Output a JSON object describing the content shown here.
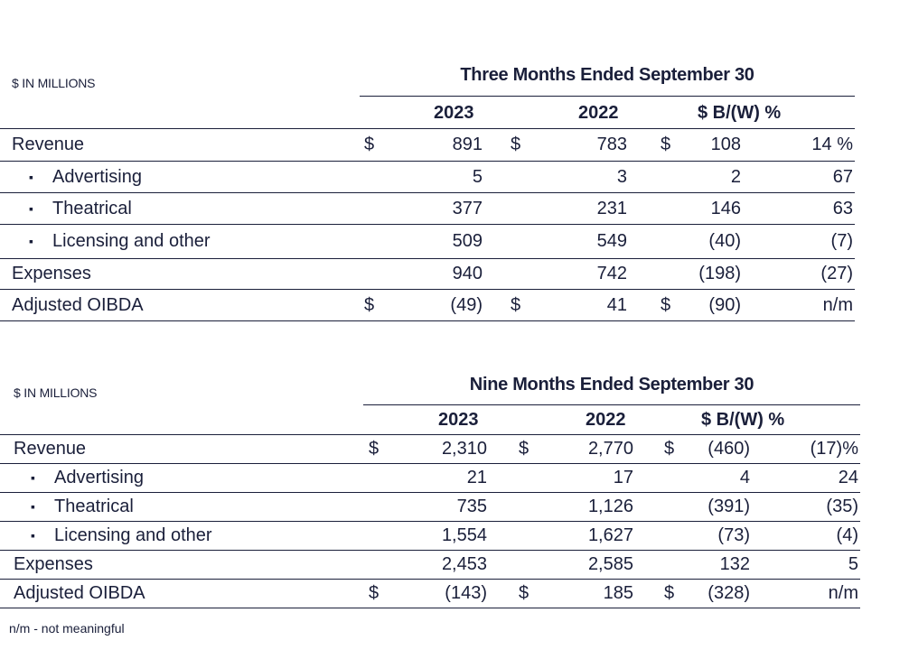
{
  "tables": [
    {
      "units": "$ IN MILLIONS",
      "period": "Three Months Ended September 30",
      "columns": [
        "2023",
        "2022",
        "$ B/(W) %"
      ],
      "rows": [
        {
          "label": "Revenue",
          "sub": false,
          "d1": "$",
          "v2023": "891",
          "d2": "$",
          "v2022": "783",
          "d3": "$",
          "bw": "108",
          "pct": "14 %"
        },
        {
          "label": "Advertising",
          "sub": true,
          "d1": "",
          "v2023": "5",
          "d2": "",
          "v2022": "3",
          "d3": "",
          "bw": "2",
          "pct": "67"
        },
        {
          "label": "Theatrical",
          "sub": true,
          "d1": "",
          "v2023": "377",
          "d2": "",
          "v2022": "231",
          "d3": "",
          "bw": "146",
          "pct": "63"
        },
        {
          "label": "Licensing and other",
          "sub": true,
          "d1": "",
          "v2023": "509",
          "d2": "",
          "v2022": "549",
          "d3": "",
          "bw": "(40)",
          "pct": "(7)"
        },
        {
          "label": "Expenses",
          "sub": false,
          "d1": "",
          "v2023": "940",
          "d2": "",
          "v2022": "742",
          "d3": "",
          "bw": "(198)",
          "pct": "(27)"
        },
        {
          "label": "Adjusted OIBDA",
          "sub": false,
          "d1": "$",
          "v2023": "(49)",
          "d2": "$",
          "v2022": "41",
          "d3": "$",
          "bw": "(90)",
          "pct": "n/m"
        }
      ]
    },
    {
      "units": "$ IN MILLIONS",
      "period": "Nine Months Ended September 30",
      "columns": [
        "2023",
        "2022",
        "$ B/(W) %"
      ],
      "rows": [
        {
          "label": "Revenue",
          "sub": false,
          "d1": "$",
          "v2023": "2,310",
          "d2": "$",
          "v2022": "2,770",
          "d3": "$",
          "bw": "(460)",
          "pct": "(17)%"
        },
        {
          "label": "Advertising",
          "sub": true,
          "d1": "",
          "v2023": "21",
          "d2": "",
          "v2022": "17",
          "d3": "",
          "bw": "4",
          "pct": "24"
        },
        {
          "label": "Theatrical",
          "sub": true,
          "d1": "",
          "v2023": "735",
          "d2": "",
          "v2022": "1,126",
          "d3": "",
          "bw": "(391)",
          "pct": "(35)"
        },
        {
          "label": "Licensing and other",
          "sub": true,
          "d1": "",
          "v2023": "1,554",
          "d2": "",
          "v2022": "1,627",
          "d3": "",
          "bw": "(73)",
          "pct": "(4)"
        },
        {
          "label": "Expenses",
          "sub": false,
          "d1": "",
          "v2023": "2,453",
          "d2": "",
          "v2022": "2,585",
          "d3": "",
          "bw": "132",
          "pct": "5"
        },
        {
          "label": "Adjusted OIBDA",
          "sub": false,
          "d1": "$",
          "v2023": "(143)",
          "d2": "$",
          "v2022": "185",
          "d3": "$",
          "bw": "(328)",
          "pct": "n/m"
        }
      ]
    }
  ],
  "bullet_glyph": "▪",
  "footnote": "n/m - not meaningful"
}
